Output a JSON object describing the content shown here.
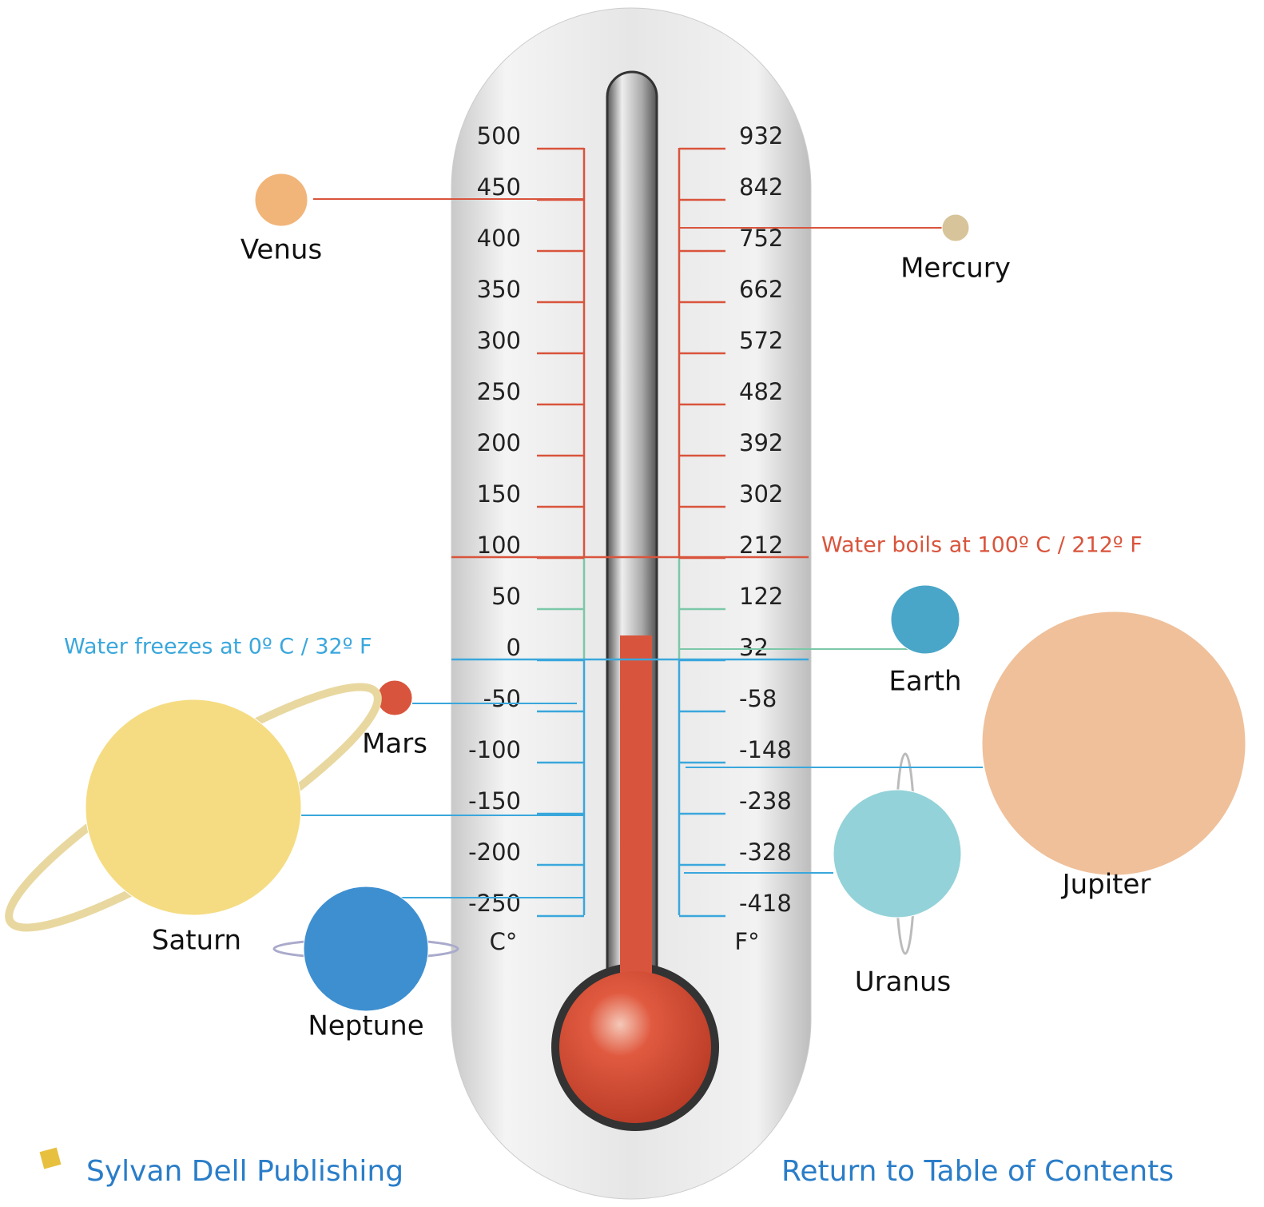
{
  "scale": {
    "celsius": [
      "500",
      "450",
      "400",
      "350",
      "300",
      "250",
      "200",
      "150",
      "100",
      "50",
      "0",
      "-50",
      "-100",
      "-150",
      "-200",
      "-250"
    ],
    "fahrenheit": [
      "932",
      "842",
      "752",
      "662",
      "572",
      "482",
      "392",
      "302",
      "212",
      "122",
      "32",
      "-58",
      "-148",
      "-238",
      "-328",
      "-418"
    ],
    "celsius_unit": "C°",
    "fahrenheit_unit": "F°"
  },
  "annotations": {
    "boil": "Water boils at 100º C / 212º F",
    "freeze": "Water freezes at 0º C / 32º F"
  },
  "planets": [
    "Venus",
    "Mercury",
    "Earth",
    "Mars",
    "Saturn",
    "Neptune",
    "Uranus",
    "Jupiter"
  ],
  "footer": {
    "publisher": "Sylvan Dell Publishing",
    "link": "Return to Table of Contents"
  }
}
